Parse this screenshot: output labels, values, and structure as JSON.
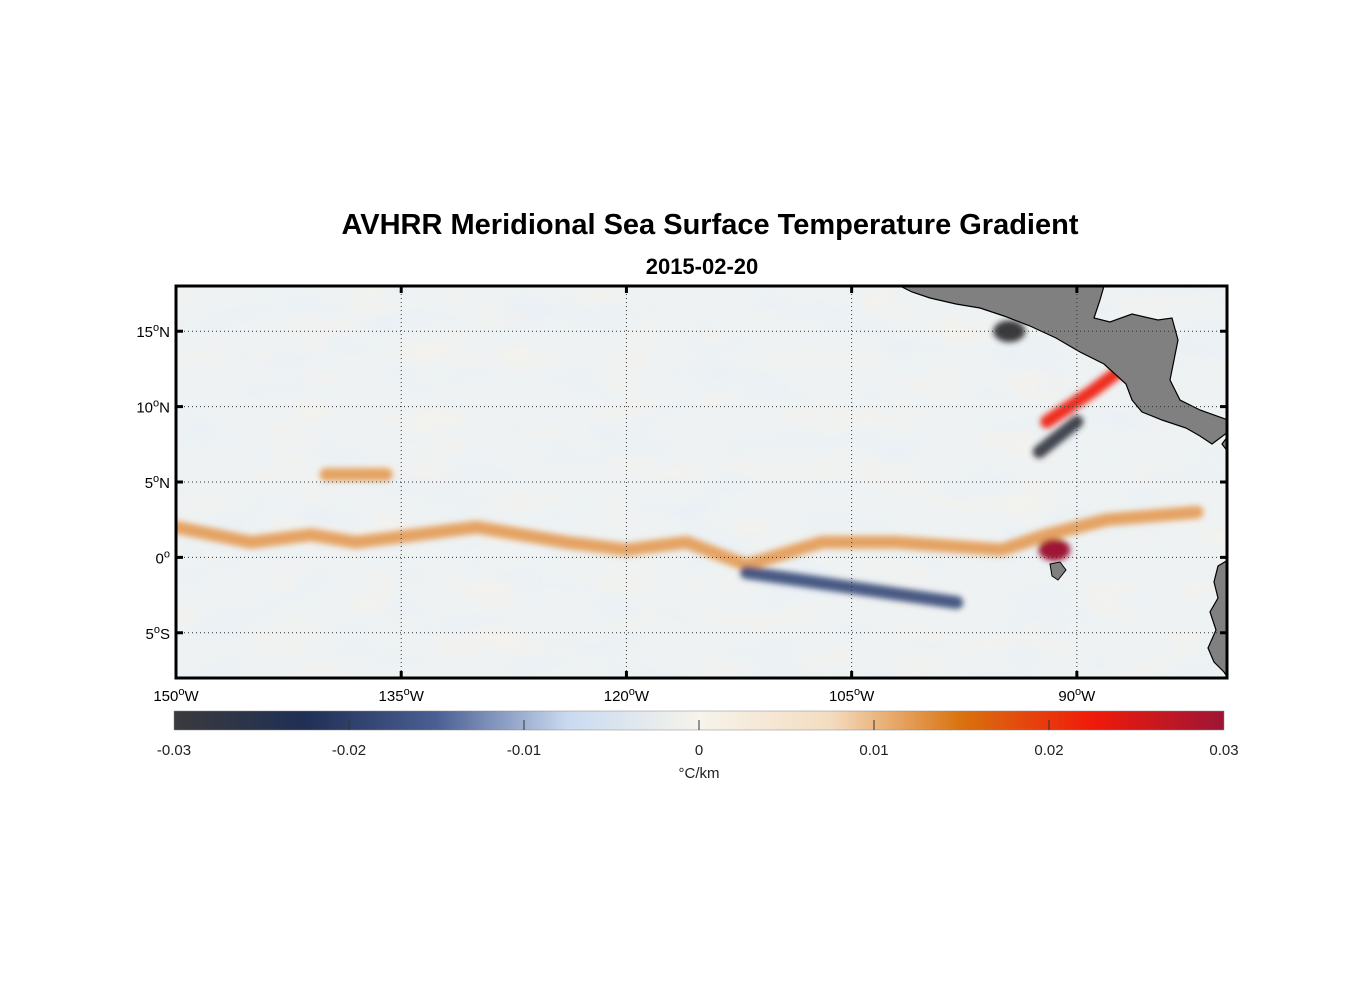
{
  "figure": {
    "title": "AVHRR Meridional Sea Surface Temperature Gradient",
    "subtitle": "2015-02-20"
  },
  "map": {
    "lon_range": [
      -150,
      -80
    ],
    "lat_range": [
      -8,
      18
    ],
    "lon_ticks": [
      {
        "value": -150,
        "deg": "150",
        "hemi": "W"
      },
      {
        "value": -135,
        "deg": "135",
        "hemi": "W"
      },
      {
        "value": -120,
        "deg": "120",
        "hemi": "W"
      },
      {
        "value": -105,
        "deg": "105",
        "hemi": "W"
      },
      {
        "value": -90,
        "deg": "90",
        "hemi": "W"
      }
    ],
    "lat_ticks": [
      {
        "value": 15,
        "deg": "15",
        "hemi": "N"
      },
      {
        "value": 10,
        "deg": "10",
        "hemi": "N"
      },
      {
        "value": 5,
        "deg": "5",
        "hemi": "N"
      },
      {
        "value": 0,
        "deg": "0",
        "hemi": ""
      },
      {
        "value": -5,
        "deg": "5",
        "hemi": "S"
      }
    ],
    "land_color": "#808080",
    "grid": "dotted"
  },
  "colorbar": {
    "ticks": [
      "-0.03",
      "-0.02",
      "-0.01",
      "0",
      "0.01",
      "0.02",
      "0.03"
    ],
    "unit": "°C/km",
    "range": [
      -0.03,
      0.03
    ],
    "colors": [
      "#3a3a3c",
      "#1f2f55",
      "#4a5f93",
      "#c9daf0",
      "#f6f4ec",
      "#f4dcc0",
      "#d9720f",
      "#f01a0a",
      "#9e1535"
    ]
  },
  "chart_data": {
    "type": "heatmap",
    "title": "AVHRR Meridional Sea Surface Temperature Gradient",
    "subtitle": "2015-02-20",
    "variable": "meridional SST gradient",
    "units": "°C/km",
    "clim": [
      -0.03,
      0.03
    ],
    "xlim": [
      -150,
      -80
    ],
    "ylim": [
      -8,
      18
    ],
    "features": [
      {
        "type": "positive band",
        "points": [
          [
            -150,
            2
          ],
          [
            -145,
            1
          ],
          [
            -141,
            1.5
          ],
          [
            -138,
            1
          ],
          [
            -134,
            1.5
          ],
          [
            -130,
            2
          ],
          [
            -124,
            1
          ],
          [
            -120,
            0.5
          ],
          [
            -116,
            1
          ],
          [
            -112,
            -0.5
          ],
          [
            -107,
            1
          ],
          [
            -102,
            1
          ],
          [
            -95,
            0.5
          ],
          [
            -92,
            1.5
          ],
          [
            -88,
            2.5
          ],
          [
            -82,
            3
          ]
        ],
        "value": 0.012
      },
      {
        "type": "positive band",
        "points": [
          [
            -140,
            5.5
          ],
          [
            -136,
            5.5
          ]
        ],
        "value": 0.012
      },
      {
        "type": "positive band",
        "points": [
          [
            -92,
            9
          ],
          [
            -89,
            11
          ],
          [
            -87,
            12.5
          ]
        ],
        "value": 0.022
      },
      {
        "type": "negative patch",
        "points": [
          [
            -90,
            9
          ],
          [
            -92.5,
            7
          ]
        ],
        "value": -0.028
      },
      {
        "type": "negative patch",
        "points": [
          [
            -94.5,
            15
          ]
        ],
        "value": -0.03
      },
      {
        "type": "positive patch",
        "points": [
          [
            -91.5,
            0.5
          ]
        ],
        "value": 0.03
      },
      {
        "type": "negative band",
        "points": [
          [
            -112,
            -1
          ],
          [
            -105,
            -2
          ],
          [
            -98,
            -3
          ]
        ],
        "value": -0.018
      }
    ]
  }
}
